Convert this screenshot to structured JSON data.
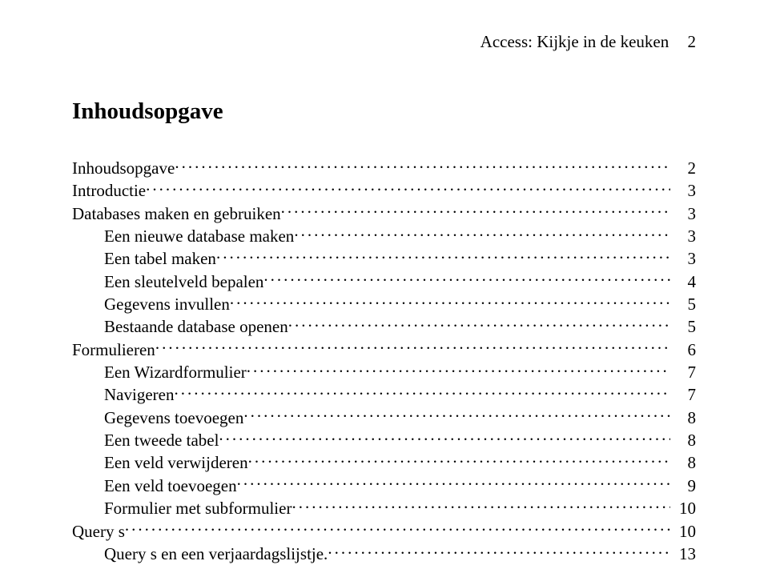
{
  "header": {
    "text": "Access:  Kijkje in de keuken",
    "page_number": "2"
  },
  "title": "Inhoudsopgave",
  "toc": [
    {
      "level": 1,
      "label": "Inhoudsopgave",
      "page": "2"
    },
    {
      "level": 1,
      "label": "Introductie",
      "page": "3"
    },
    {
      "level": 1,
      "label": "Databases maken en gebruiken",
      "page": "3"
    },
    {
      "level": 2,
      "label": "Een nieuwe database maken",
      "page": "3"
    },
    {
      "level": 2,
      "label": "Een tabel maken",
      "page": "3"
    },
    {
      "level": 2,
      "label": "Een  sleutelveld bepalen",
      "page": "4"
    },
    {
      "level": 2,
      "label": "Gegevens invullen",
      "page": "5"
    },
    {
      "level": 2,
      "label": "Bestaande database openen",
      "page": "5"
    },
    {
      "level": 1,
      "label": "Formulieren",
      "page": "6"
    },
    {
      "level": 2,
      "label": "Een Wizardformulier",
      "page": "7"
    },
    {
      "level": 2,
      "label": "Navigeren",
      "page": "7"
    },
    {
      "level": 2,
      "label": "Gegevens toevoegen",
      "page": "8"
    },
    {
      "level": 2,
      "label": "Een tweede tabel",
      "page": "8"
    },
    {
      "level": 2,
      "label": "Een veld verwijderen",
      "page": "8"
    },
    {
      "level": 2,
      "label": "Een veld  toevoegen",
      "page": "9"
    },
    {
      "level": 2,
      "label": "Formulier met subformulier",
      "page": "10"
    },
    {
      "level": 1,
      "label": "Query s",
      "page": "10"
    },
    {
      "level": 2,
      "label": "Query s en een verjaardagslijstje.",
      "page": "13"
    }
  ],
  "colors": {
    "background": "#ffffff",
    "text": "#000000"
  },
  "typography": {
    "font_family": "Times New Roman",
    "header_fontsize_pt": 16,
    "title_fontsize_pt": 22,
    "toc_fontsize_pt": 16
  }
}
